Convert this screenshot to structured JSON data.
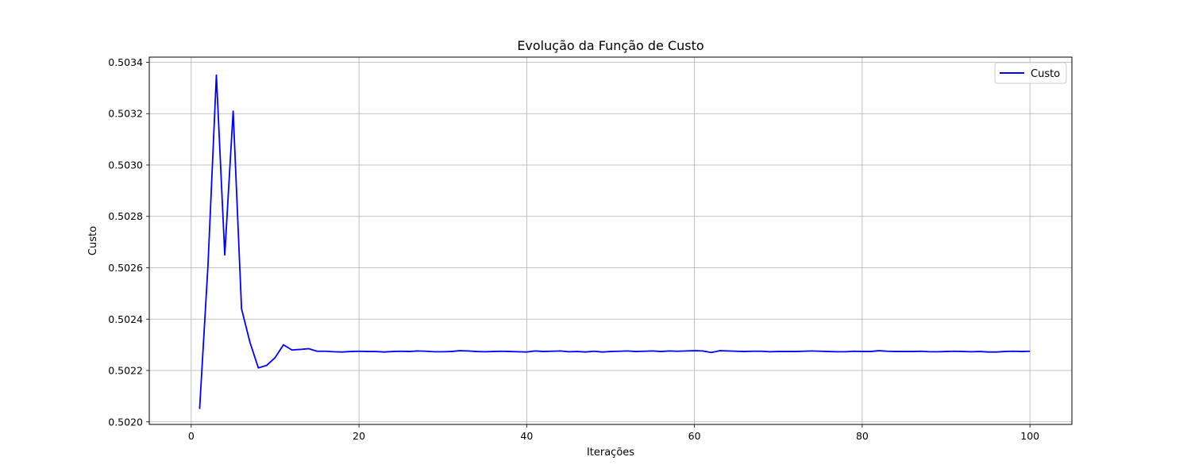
{
  "chart_data": {
    "type": "line",
    "title": "Evolução da Função de Custo",
    "xlabel": "Iterações",
    "ylabel": "Custo",
    "xlim": [
      -5,
      105
    ],
    "ylim": [
      0.50199,
      0.50342
    ],
    "xticks": [
      0,
      20,
      40,
      60,
      80,
      100
    ],
    "yticks": [
      0.502,
      0.5022,
      0.5024,
      0.5026,
      0.5028,
      0.503,
      0.5032,
      0.5034
    ],
    "ytick_labels": [
      "0.5020",
      "0.5022",
      "0.5024",
      "0.5026",
      "0.5028",
      "0.5030",
      "0.5032",
      "0.5034"
    ],
    "grid": true,
    "legend_position": "top-right",
    "series": [
      {
        "name": "Custo",
        "color": "#0000ff",
        "x": [
          1,
          2,
          3,
          4,
          5,
          6,
          7,
          8,
          9,
          10,
          11,
          12,
          13,
          14,
          15,
          16,
          17,
          18,
          19,
          20,
          21,
          22,
          23,
          24,
          25,
          26,
          27,
          28,
          29,
          30,
          31,
          32,
          33,
          34,
          35,
          36,
          37,
          38,
          39,
          40,
          41,
          42,
          43,
          44,
          45,
          46,
          47,
          48,
          49,
          50,
          51,
          52,
          53,
          54,
          55,
          56,
          57,
          58,
          59,
          60,
          61,
          62,
          63,
          64,
          65,
          66,
          67,
          68,
          69,
          70,
          71,
          72,
          73,
          74,
          75,
          76,
          77,
          78,
          79,
          80,
          81,
          82,
          83,
          84,
          85,
          86,
          87,
          88,
          89,
          90,
          91,
          92,
          93,
          94,
          95,
          96,
          97,
          98,
          99,
          100
        ],
        "values": [
          0.50205,
          0.50261,
          0.50335,
          0.50265,
          0.50321,
          0.50244,
          0.50231,
          0.50221,
          0.50222,
          0.50225,
          0.5023,
          0.50228,
          0.502282,
          0.502285,
          0.502275,
          0.502275,
          0.502273,
          0.502272,
          0.502274,
          0.502275,
          0.502274,
          0.502274,
          0.502272,
          0.502274,
          0.502275,
          0.502274,
          0.502276,
          0.502275,
          0.502273,
          0.502273,
          0.502274,
          0.502277,
          0.502276,
          0.502274,
          0.502273,
          0.502274,
          0.502275,
          0.502274,
          0.502273,
          0.502272,
          0.502276,
          0.502274,
          0.502275,
          0.502276,
          0.502273,
          0.502274,
          0.502272,
          0.502275,
          0.502272,
          0.502274,
          0.502275,
          0.502276,
          0.502274,
          0.502275,
          0.502276,
          0.502274,
          0.502276,
          0.502275,
          0.502276,
          0.502277,
          0.502276,
          0.50227,
          0.502277,
          0.502276,
          0.502275,
          0.502274,
          0.502275,
          0.502275,
          0.502273,
          0.502274,
          0.502274,
          0.502274,
          0.502275,
          0.502276,
          0.502275,
          0.502274,
          0.502273,
          0.502273,
          0.502275,
          0.502274,
          0.502274,
          0.502277,
          0.502275,
          0.502274,
          0.502274,
          0.502274,
          0.502275,
          0.502273,
          0.502273,
          0.502274,
          0.502275,
          0.502274,
          0.502273,
          0.502274,
          0.502272,
          0.502272,
          0.502274,
          0.502275,
          0.502274,
          0.502275
        ]
      }
    ]
  }
}
